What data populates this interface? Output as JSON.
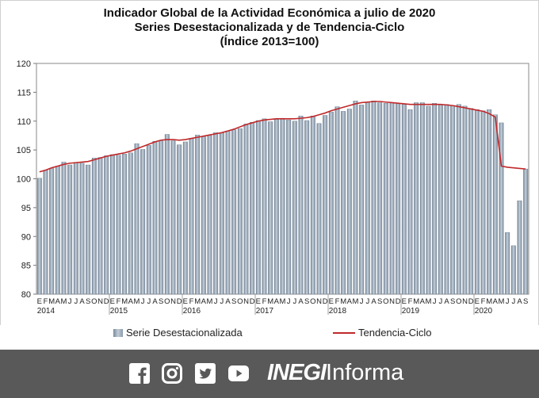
{
  "chart_data": {
    "type": "bar",
    "title_lines": [
      "Indicador Global de la Actividad Económica a julio de 2020",
      "Series Desestacionalizada y de Tendencia-Ciclo",
      "(Índice 2013=100)"
    ],
    "ylim": [
      80,
      120
    ],
    "yticks": [
      80,
      85,
      90,
      95,
      100,
      105,
      110,
      115,
      120
    ],
    "month_labels": [
      "E",
      "F",
      "M",
      "A",
      "M",
      "J",
      "J",
      "A",
      "S",
      "O",
      "N",
      "D"
    ],
    "year_labels": [
      "2014",
      "2015",
      "2016",
      "2017",
      "2018",
      "2019",
      "2020"
    ],
    "series": [
      {
        "name": "Serie Desestacionalizada",
        "type": "bar",
        "color": "#8a9aab",
        "values": [
          100.1,
          101.5,
          101.8,
          102.2,
          102.9,
          102.4,
          102.8,
          102.7,
          102.4,
          103.6,
          103.7,
          104.0,
          104.2,
          104.1,
          104.3,
          104.5,
          106.1,
          105.1,
          105.8,
          106.5,
          106.6,
          107.7,
          106.6,
          105.9,
          106.4,
          107.0,
          107.6,
          107.3,
          107.5,
          108.0,
          108.0,
          108.3,
          108.5,
          108.7,
          109.5,
          109.8,
          110.1,
          110.4,
          109.9,
          110.3,
          110.5,
          110.2,
          110.0,
          110.9,
          110.1,
          110.9,
          109.6,
          111.0,
          111.6,
          112.5,
          111.7,
          112.1,
          113.5,
          112.8,
          113.2,
          113.5,
          113.2,
          113.1,
          113.2,
          113.0,
          112.9,
          112.0,
          113.2,
          113.2,
          112.6,
          113.1,
          112.8,
          112.9,
          112.7,
          112.9,
          112.6,
          112.2,
          112.0,
          111.8,
          112.0,
          111.1,
          109.7,
          90.7,
          88.4,
          96.2,
          101.7
        ]
      },
      {
        "name": "Tendencia-Ciclo",
        "type": "line",
        "color": "#c0282a",
        "values": [
          101.2,
          101.5,
          101.9,
          102.2,
          102.5,
          102.7,
          102.8,
          102.9,
          103.0,
          103.3,
          103.6,
          103.9,
          104.1,
          104.3,
          104.5,
          104.8,
          105.2,
          105.6,
          106.0,
          106.4,
          106.7,
          106.8,
          106.8,
          106.7,
          106.8,
          107.0,
          107.2,
          107.4,
          107.6,
          107.8,
          108.0,
          108.3,
          108.6,
          109.0,
          109.4,
          109.7,
          110.0,
          110.2,
          110.3,
          110.4,
          110.4,
          110.4,
          110.4,
          110.5,
          110.6,
          110.8,
          111.1,
          111.4,
          111.8,
          112.1,
          112.4,
          112.7,
          113.0,
          113.2,
          113.3,
          113.4,
          113.4,
          113.3,
          113.2,
          113.1,
          113.0,
          112.9,
          112.9,
          112.9,
          112.9,
          112.9,
          112.9,
          112.8,
          112.7,
          112.5,
          112.3,
          112.1,
          111.9,
          111.7,
          111.3,
          110.7,
          102.2,
          102.0,
          101.9,
          101.8,
          101.7
        ]
      }
    ]
  },
  "legend": {
    "bar_label": "Serie Desestacionalizada",
    "line_label": "Tendencia-Ciclo"
  },
  "footer": {
    "brand_bold": "INEGI",
    "brand_light": "Informa",
    "icons": [
      "facebook-icon",
      "instagram-icon",
      "twitter-icon",
      "youtube-icon"
    ]
  }
}
